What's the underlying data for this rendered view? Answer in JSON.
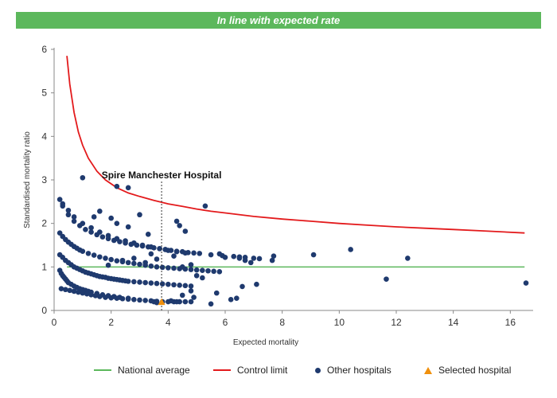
{
  "banner": "In line with expected rate",
  "chart_data": {
    "type": "scatter",
    "xlabel": "Expected mortality",
    "ylabel": "Standardised mortality ratio",
    "xlim": [
      0,
      16.8
    ],
    "ylim": [
      0,
      6
    ],
    "x_ticks": [
      0,
      2,
      4,
      6,
      8,
      10,
      12,
      14,
      16
    ],
    "y_ticks": [
      0,
      1,
      2,
      3,
      4,
      5,
      6
    ],
    "national_average": 1,
    "control_limit": {
      "x": [
        0.45,
        0.55,
        0.7,
        0.85,
        1.0,
        1.2,
        1.5,
        1.8,
        2.2,
        2.6,
        3.0,
        3.5,
        4.0,
        4.5,
        5.0,
        5.5,
        6,
        7,
        8,
        9,
        10,
        11,
        12,
        13,
        14,
        15,
        16.5
      ],
      "y": [
        5.85,
        5.2,
        4.55,
        4.1,
        3.8,
        3.5,
        3.2,
        3.0,
        2.82,
        2.7,
        2.62,
        2.53,
        2.45,
        2.39,
        2.33,
        2.28,
        2.24,
        2.16,
        2.1,
        2.05,
        2.0,
        1.96,
        1.92,
        1.89,
        1.86,
        1.83,
        1.78
      ]
    },
    "other_hospitals": {
      "x": [
        0.2,
        0.25,
        0.3,
        0.35,
        0.4,
        0.45,
        0.5,
        0.6,
        0.7,
        0.8,
        0.9,
        1.0,
        1.1,
        1.2,
        1.3,
        1.5,
        1.7,
        1.9,
        2.1,
        2.3,
        2.6,
        0.2,
        0.3,
        0.4,
        0.5,
        0.6,
        0.7,
        0.8,
        0.9,
        1.0,
        1.1,
        1.2,
        1.3,
        1.4,
        1.5,
        1.6,
        1.7,
        1.8,
        1.9,
        2.0,
        2.1,
        2.2,
        2.3,
        2.4,
        2.5,
        2.6,
        2.8,
        3.0,
        3.2,
        3.4,
        3.6,
        3.8,
        4.0,
        4.2,
        4.4,
        4.6,
        4.8,
        0.2,
        0.3,
        0.4,
        0.5,
        0.6,
        0.7,
        0.8,
        0.9,
        1.0,
        1.2,
        1.4,
        1.6,
        1.8,
        2.0,
        2.2,
        2.4,
        2.6,
        2.8,
        3.0,
        3.2,
        3.4,
        3.6,
        3.8,
        4.0,
        4.2,
        4.4,
        4.6,
        4.8,
        5.0,
        5.2,
        5.4,
        5.6,
        5.8,
        0.3,
        0.5,
        0.7,
        0.9,
        1.1,
        1.3,
        1.5,
        1.7,
        1.9,
        2.1,
        2.3,
        2.5,
        2.7,
        2.9,
        3.1,
        3.3,
        3.5,
        3.7,
        3.9,
        4.1,
        4.3,
        4.5,
        4.7,
        4.9,
        5.1,
        5.5,
        5.9,
        6.3,
        6.5,
        6.7,
        7.0,
        7.2,
        0.25,
        0.4,
        0.55,
        0.7,
        0.85,
        1.0,
        1.15,
        1.3,
        1.45,
        1.6,
        1.8,
        2.0,
        2.2,
        2.4,
        2.6,
        2.8,
        3.0,
        3.2,
        3.4,
        3.6,
        3.8,
        4.0,
        4.2,
        4.4,
        4.6,
        4.8,
        0.2,
        0.3,
        0.5,
        0.7,
        1.0,
        1.3,
        1.6,
        1.9,
        2.2,
        2.5,
        2.8,
        3.1,
        3.4,
        3.7,
        4.0,
        4.3,
        4.6,
        1.0,
        2.2,
        2.6,
        5.3,
        1.4,
        1.6,
        2.0,
        2.2,
        2.6,
        3.0,
        3.3,
        4.3,
        4.4,
        4.6,
        1.9,
        2.4,
        2.8,
        3.2,
        3.4,
        3.6,
        3.9,
        4.2,
        4.5,
        4.8,
        5.0,
        5.2,
        5.8,
        6.0,
        6.5,
        6.7,
        6.9,
        7.7,
        7.65,
        9.1,
        10.4,
        12.4,
        11.65,
        16.55,
        4.3,
        4.9,
        5.5,
        5.7,
        6.2,
        6.4,
        6.6,
        7.1,
        3.5,
        3.6,
        4.1,
        4.5,
        4.8
      ],
      "y": [
        0.92,
        0.85,
        0.8,
        0.76,
        0.72,
        0.68,
        0.64,
        0.6,
        0.56,
        0.53,
        0.5,
        0.48,
        0.46,
        0.44,
        0.42,
        0.39,
        0.36,
        0.34,
        0.32,
        0.3,
        0.28,
        1.28,
        1.22,
        1.15,
        1.1,
        1.05,
        1.0,
        0.97,
        0.94,
        0.91,
        0.88,
        0.86,
        0.84,
        0.82,
        0.8,
        0.78,
        0.77,
        0.76,
        0.74,
        0.73,
        0.72,
        0.71,
        0.7,
        0.69,
        0.68,
        0.67,
        0.66,
        0.65,
        0.64,
        0.63,
        0.62,
        0.61,
        0.6,
        0.59,
        0.58,
        0.57,
        0.56,
        1.78,
        1.7,
        1.63,
        1.57,
        1.52,
        1.47,
        1.43,
        1.39,
        1.36,
        1.31,
        1.27,
        1.23,
        1.2,
        1.17,
        1.14,
        1.12,
        1.1,
        1.08,
        1.06,
        1.04,
        1.02,
        1.0,
        0.99,
        0.98,
        0.97,
        0.96,
        0.95,
        0.94,
        0.93,
        0.92,
        0.91,
        0.9,
        0.89,
        2.4,
        2.2,
        2.05,
        1.95,
        1.86,
        1.8,
        1.74,
        1.69,
        1.65,
        1.61,
        1.58,
        1.55,
        1.52,
        1.5,
        1.48,
        1.46,
        1.44,
        1.42,
        1.4,
        1.38,
        1.36,
        1.35,
        1.33,
        1.32,
        1.31,
        1.28,
        1.26,
        1.24,
        1.23,
        1.22,
        1.2,
        1.19,
        0.5,
        0.48,
        0.46,
        0.44,
        0.42,
        0.4,
        0.38,
        0.36,
        0.34,
        0.32,
        0.3,
        0.29,
        0.28,
        0.27,
        0.26,
        0.25,
        0.24,
        0.23,
        0.22,
        0.21,
        0.2,
        0.2,
        0.2,
        0.2,
        0.2,
        0.2,
        2.55,
        2.45,
        2.3,
        2.15,
        2.0,
        1.9,
        1.8,
        1.72,
        1.65,
        1.6,
        1.55,
        1.5,
        1.46,
        1.42,
        1.38,
        1.35,
        1.32,
        3.05,
        2.85,
        2.82,
        2.4,
        2.15,
        2.28,
        2.12,
        2.0,
        1.92,
        2.2,
        1.75,
        2.05,
        1.95,
        1.82,
        1.04,
        1.15,
        1.2,
        1.1,
        1.3,
        1.18,
        1.4,
        1.25,
        1.0,
        1.05,
        0.8,
        0.75,
        1.3,
        1.22,
        1.2,
        1.15,
        1.1,
        1.25,
        1.15,
        1.28,
        1.4,
        1.2,
        0.72,
        0.63,
        0.2,
        0.3,
        0.15,
        0.4,
        0.25,
        0.28,
        0.55,
        0.6,
        0.2,
        0.18,
        0.22,
        0.35,
        0.45
      ]
    },
    "selected_hospital": {
      "name": "Spire Manchester Hospital",
      "x": 3.77,
      "y": 0.19
    },
    "legend": {
      "national_average": "National average",
      "control_limit": "Control limit",
      "other_hospitals": "Other hospitals",
      "selected_hospital": "Selected hospital"
    },
    "colors": {
      "national_average": "#5cb85c",
      "control_limit": "#e31a1c",
      "other_hospitals": "#1f3a6e",
      "selected_hospital": "#f0900c",
      "axis": "#888888"
    }
  }
}
